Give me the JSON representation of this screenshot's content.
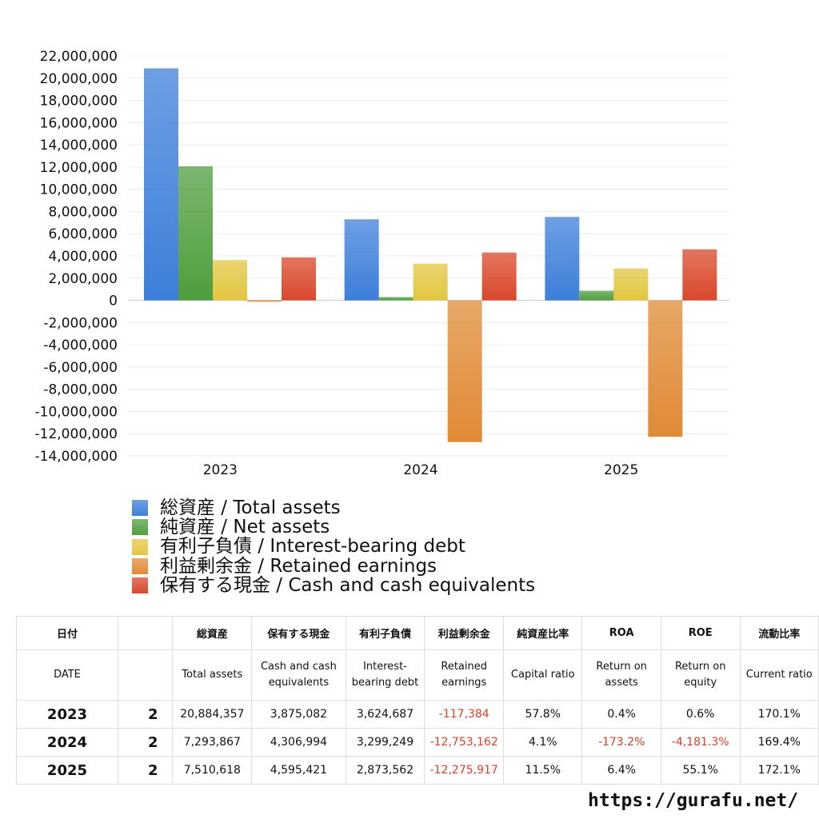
{
  "chart_data": {
    "type": "bar",
    "categories": [
      "2023",
      "2024",
      "2025"
    ],
    "ylim": [
      -14000000,
      22000000
    ],
    "yticks": [
      "22,000,000",
      "20,000,000",
      "18,000,000",
      "16,000,000",
      "14,000,000",
      "12,000,000",
      "10,000,000",
      "8,000,000",
      "6,000,000",
      "4,000,000",
      "2,000,000",
      "0",
      "-2,000,000",
      "-4,000,000",
      "-6,000,000",
      "-8,000,000",
      "-10,000,000",
      "-12,000,000",
      "-14,000,000"
    ],
    "series": [
      {
        "name": "総資産 / Total assets",
        "color": "#3d7fd9",
        "values": [
          20884357,
          7293867,
          7510618
        ]
      },
      {
        "name": "純資産 / Net assets",
        "color": "#4f9e3e",
        "values": [
          12071158,
          299049,
          863721
        ]
      },
      {
        "name": "有利子負債 / Interest-bearing debt",
        "color": "#e2c640",
        "values": [
          3624687,
          3299249,
          2873562
        ]
      },
      {
        "name": "利益剰余金 / Retained earnings",
        "color": "#e08a35",
        "values": [
          -117384,
          -12753162,
          -12275917
        ]
      },
      {
        "name": "保有する現金 /  Cash and cash equivalents",
        "color": "#d9482b",
        "values": [
          3875082,
          4306994,
          4595421
        ]
      }
    ],
    "grid": true,
    "legend": "bottom-left"
  },
  "table": {
    "header1": [
      "日付",
      "",
      "総資産",
      "保有する現金",
      "有利子負債",
      "利益剰余金",
      "純資産比率",
      "ROA",
      "ROE",
      "流動比率"
    ],
    "header2": [
      "DATE",
      "",
      "Total assets",
      "Cash and cash equivalents",
      "Interest-bearing debt",
      "Retained earnings",
      "Capital ratio",
      "Return on assets",
      "Return on equity",
      "Current ratio"
    ],
    "rows": [
      [
        "2023",
        "2",
        "20,884,357",
        "3,875,082",
        "3,624,687",
        "-117,384",
        "57.8%",
        "0.4%",
        "0.6%",
        "170.1%"
      ],
      [
        "2024",
        "2",
        "7,293,867",
        "4,306,994",
        "3,299,249",
        "-12,753,162",
        "4.1%",
        "-173.2%",
        "-4,181.3%",
        "169.4%"
      ],
      [
        "2025",
        "2",
        "7,510,618",
        "4,595,421",
        "2,873,562",
        "-12,275,917",
        "11.5%",
        "6.4%",
        "55.1%",
        "172.1%"
      ]
    ]
  },
  "footer": {
    "url": "https://gurafu.net/"
  }
}
